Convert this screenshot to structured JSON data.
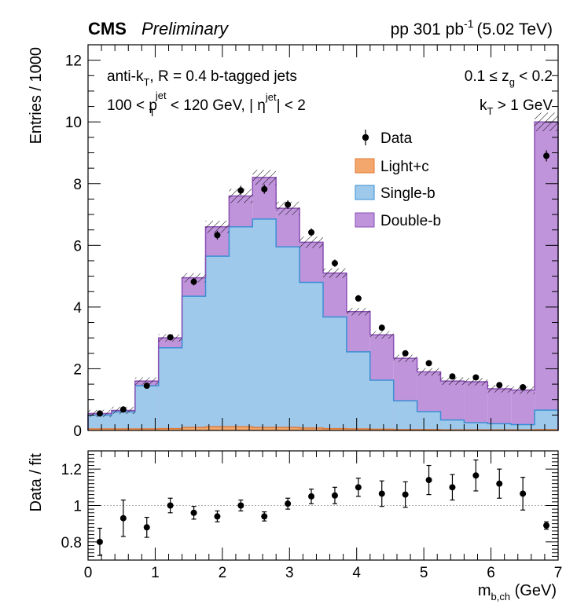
{
  "header": {
    "experiment": "CMS",
    "status": "Preliminary",
    "lumi": "pp 301 pb",
    "lumi_exp": "-1",
    "energy": "(5.02 TeV)"
  },
  "annotations": {
    "algo_a": "anti-k",
    "algo_sub": "T",
    "algo_b": ", R = 0.4 b-tagged jets",
    "cut_a": "100 < p",
    "cut_pt_sup": "jet",
    "cut_pt_sub": "T",
    "cut_b": " < 120 GeV, |",
    "cut_eta": " η",
    "cut_eta_sup": "jet",
    "cut_c": "| < 2",
    "zg_a": "0.1 ≤ z",
    "zg_sub": "g",
    "zg_b": " < 0.2",
    "kt_a": "k",
    "kt_sub": "T",
    "kt_b": " > 1 GeV"
  },
  "chart_data": [
    {
      "type": "bar",
      "stacked": true,
      "ylabel": "Entries / 1000",
      "ylim": [
        0,
        12.5
      ],
      "yticks": [
        0,
        2,
        4,
        6,
        8,
        10,
        12
      ],
      "xlim": [
        0,
        7
      ],
      "bin_edges": [
        0,
        0.35,
        0.7,
        1.05,
        1.4,
        1.75,
        2.1,
        2.45,
        2.8,
        3.15,
        3.5,
        3.85,
        4.2,
        4.55,
        4.9,
        5.25,
        5.6,
        5.95,
        6.3,
        6.65,
        7.0
      ],
      "series": [
        {
          "name": "Light+c",
          "color": "#f4a76c",
          "line": "#e07b39",
          "values": [
            0.05,
            0.05,
            0.05,
            0.06,
            0.1,
            0.12,
            0.12,
            0.1,
            0.1,
            0.08,
            0.06,
            0.05,
            0.04,
            0.03,
            0.03,
            0.02,
            0.02,
            0.02,
            0.02,
            0.03
          ]
        },
        {
          "name": "Single-b",
          "color": "#9ec9ea",
          "line": "#3a8fd4",
          "values": [
            0.45,
            0.55,
            1.4,
            2.62,
            4.25,
            5.53,
            6.48,
            6.75,
            5.85,
            4.72,
            3.62,
            2.5,
            1.59,
            0.93,
            0.58,
            0.32,
            0.23,
            0.2,
            0.17,
            0.63
          ]
        },
        {
          "name": "Double-b",
          "color": "#bf94db",
          "line": "#8a4fb5",
          "values": [
            0.05,
            0.05,
            0.15,
            0.32,
            0.6,
            0.95,
            1.0,
            1.35,
            1.25,
            1.3,
            1.42,
            1.3,
            1.47,
            1.38,
            1.29,
            1.26,
            1.33,
            1.13,
            1.12,
            9.34
          ]
        }
      ],
      "data": {
        "name": "Data",
        "x": [
          0.175,
          0.525,
          0.875,
          1.225,
          1.575,
          1.925,
          2.275,
          2.625,
          2.975,
          3.325,
          3.675,
          4.025,
          4.375,
          4.725,
          5.075,
          5.425,
          5.775,
          6.125,
          6.475,
          6.825
        ],
        "y": [
          0.55,
          0.68,
          1.45,
          3.02,
          4.82,
          6.33,
          7.78,
          7.82,
          7.32,
          6.42,
          5.42,
          4.28,
          3.33,
          2.5,
          2.18,
          1.75,
          1.72,
          1.47,
          1.4,
          8.9
        ],
        "err": [
          0.04,
          0.05,
          0.07,
          0.09,
          0.12,
          0.14,
          0.15,
          0.15,
          0.14,
          0.13,
          0.12,
          0.11,
          0.1,
          0.09,
          0.08,
          0.08,
          0.08,
          0.07,
          0.07,
          0.18
        ]
      },
      "legend": {
        "position": "top-right",
        "entries": [
          "Data",
          "Light+c",
          "Single-b",
          "Double-b"
        ]
      }
    },
    {
      "type": "scatter",
      "ylabel": "Data / fit",
      "xlabel": "m",
      "xlabel_sub": "b,ch",
      "xlabel_unit": " (GeV)",
      "ylim": [
        0.7,
        1.3
      ],
      "yticks": [
        0.8,
        1,
        1.2
      ],
      "ytick_labels": [
        "0.8",
        "1",
        "1.2"
      ],
      "xlim": [
        0,
        7
      ],
      "xticks": [
        0,
        1,
        2,
        3,
        4,
        5,
        6,
        7
      ],
      "xtick_labels": [
        "0",
        "1",
        "2",
        "3",
        "4",
        "5",
        "6",
        "7"
      ],
      "reference_line": 1,
      "x": [
        0.175,
        0.525,
        0.875,
        1.225,
        1.575,
        1.925,
        2.275,
        2.625,
        2.975,
        3.325,
        3.675,
        4.025,
        4.375,
        4.725,
        5.075,
        5.425,
        5.775,
        6.125,
        6.475,
        6.825
      ],
      "y": [
        0.8,
        0.93,
        0.88,
        1.0,
        0.96,
        0.94,
        1.0,
        0.94,
        1.01,
        1.05,
        1.055,
        1.1,
        1.065,
        1.06,
        1.14,
        1.1,
        1.165,
        1.12,
        1.065,
        0.89
      ],
      "err": [
        0.075,
        0.1,
        0.055,
        0.04,
        0.035,
        0.03,
        0.03,
        0.025,
        0.03,
        0.04,
        0.045,
        0.05,
        0.07,
        0.07,
        0.08,
        0.07,
        0.085,
        0.08,
        0.09,
        0.02
      ]
    }
  ]
}
